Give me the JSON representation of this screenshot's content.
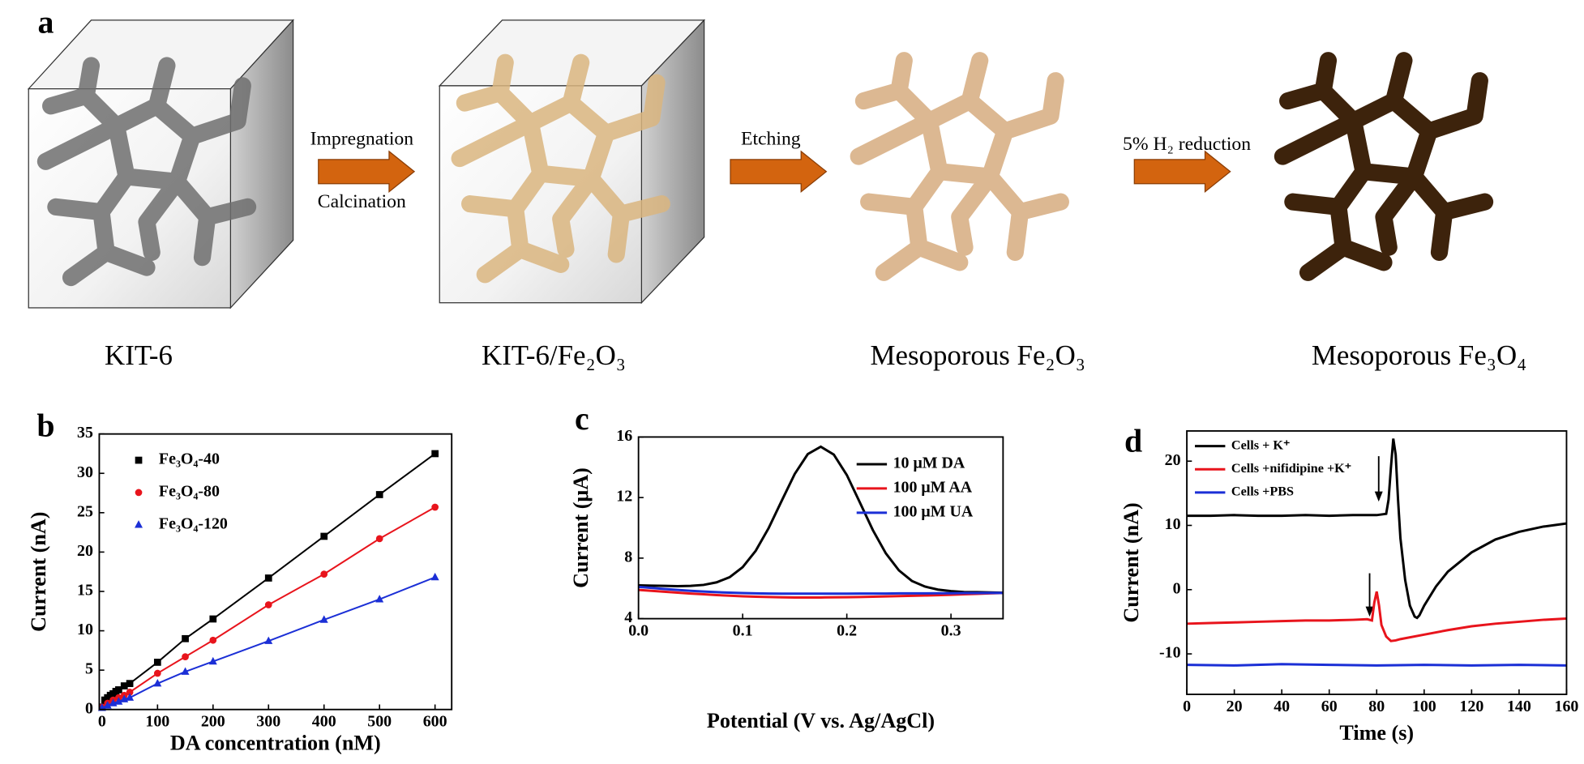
{
  "diagram": {
    "panel_label": "a",
    "steps": [
      {
        "label": "KIT-6"
      },
      {
        "label": "KIT-6/Fe₂O₃"
      },
      {
        "label": "Mesoporous Fe₂O₃"
      },
      {
        "label": "Mesoporous Fe₃O₄"
      }
    ],
    "arrows": [
      {
        "above": "Impregnation",
        "below": "Calcination"
      },
      {
        "above": "Etching"
      },
      {
        "above": "5% H₂ reduction"
      }
    ]
  },
  "chart_data": [
    {
      "type": "scatter",
      "panel_label": "b",
      "x_label": "DA concentration (nM)",
      "y_label": "Current (nA)",
      "xlim": [
        -5,
        630
      ],
      "ylim": [
        0,
        35
      ],
      "xticks": [
        0,
        100,
        200,
        300,
        400,
        500,
        600
      ],
      "yticks": [
        0,
        5,
        10,
        15,
        20,
        25,
        30,
        35
      ],
      "legend": "upper left",
      "series": [
        {
          "name": "Fe₃O₄-40",
          "color": "#000000",
          "marker": "square",
          "x": [
            0,
            5,
            10,
            15,
            20,
            25,
            30,
            40,
            50,
            100,
            150,
            200,
            300,
            400,
            500,
            600
          ],
          "values": [
            0.3,
            1.2,
            1.5,
            1.8,
            2.0,
            2.3,
            2.5,
            3.0,
            3.3,
            6.0,
            9.0,
            11.5,
            16.7,
            22.0,
            27.3,
            32.5
          ]
        },
        {
          "name": "Fe₃O₄-80",
          "color": "#e8141c",
          "marker": "circle",
          "x": [
            0,
            10,
            20,
            30,
            40,
            50,
            100,
            150,
            200,
            300,
            400,
            500,
            600
          ],
          "values": [
            0.3,
            0.8,
            1.2,
            1.5,
            1.8,
            2.2,
            4.6,
            6.7,
            8.8,
            13.3,
            17.2,
            21.7,
            25.7
          ]
        },
        {
          "name": "Fe₃O₄-120",
          "color": "#1b2fd6",
          "marker": "triangle",
          "x": [
            0,
            10,
            20,
            30,
            40,
            50,
            100,
            150,
            200,
            300,
            400,
            500,
            600
          ],
          "values": [
            0.2,
            0.5,
            0.8,
            1.0,
            1.3,
            1.5,
            3.3,
            4.8,
            6.1,
            8.7,
            11.4,
            14.0,
            16.8
          ]
        }
      ]
    },
    {
      "type": "line",
      "panel_label": "c",
      "x_label": "Potential (V vs. Ag/AgCl)",
      "y_label": "Current (μA)",
      "xlim": [
        0,
        0.35
      ],
      "ylim": [
        4,
        16
      ],
      "xticks": [
        {
          "value": 0,
          "label": "0.0"
        },
        0.1,
        0.2,
        0.3
      ],
      "yticks": [
        4,
        8,
        12,
        16
      ],
      "legend": "upper right",
      "series": [
        {
          "name": "10 μM DA",
          "color": "#000000",
          "x": [
            0,
            0.0125,
            0.025,
            0.0375,
            0.05,
            0.0625,
            0.075,
            0.0875,
            0.1,
            0.1125,
            0.125,
            0.1375,
            0.15,
            0.1625,
            0.175,
            0.1875,
            0.2,
            0.2125,
            0.225,
            0.2375,
            0.25,
            0.2625,
            0.275,
            0.2875,
            0.3,
            0.3125,
            0.325,
            0.3375,
            0.35
          ],
          "values": [
            6.2,
            6.18,
            6.17,
            6.15,
            6.17,
            6.23,
            6.4,
            6.74,
            7.4,
            8.48,
            9.99,
            11.79,
            13.56,
            14.87,
            15.36,
            14.84,
            13.49,
            11.68,
            9.85,
            8.31,
            7.19,
            6.49,
            6.12,
            5.92,
            5.82,
            5.76,
            5.75,
            5.73,
            5.71
          ]
        },
        {
          "name": "100 μM AA",
          "color": "#e8141c",
          "x": [
            0,
            0.0125,
            0.025,
            0.0375,
            0.05,
            0.0625,
            0.075,
            0.0875,
            0.1,
            0.1125,
            0.125,
            0.1375,
            0.15,
            0.1625,
            0.175,
            0.1875,
            0.2,
            0.2125,
            0.225,
            0.2375,
            0.25,
            0.2625,
            0.275,
            0.2875,
            0.3,
            0.3125,
            0.325,
            0.3375,
            0.35
          ],
          "values": [
            5.9,
            5.84,
            5.78,
            5.72,
            5.66,
            5.61,
            5.56,
            5.52,
            5.48,
            5.45,
            5.43,
            5.41,
            5.4,
            5.4,
            5.4,
            5.41,
            5.42,
            5.43,
            5.45,
            5.47,
            5.49,
            5.51,
            5.53,
            5.55,
            5.58,
            5.61,
            5.64,
            5.67,
            5.7
          ]
        },
        {
          "name": "100 μM UA",
          "color": "#1b2fd6",
          "x": [
            0,
            0.0125,
            0.025,
            0.0375,
            0.05,
            0.0625,
            0.075,
            0.0875,
            0.1,
            0.1125,
            0.125,
            0.1375,
            0.15,
            0.1625,
            0.175,
            0.1875,
            0.2,
            0.2125,
            0.225,
            0.2375,
            0.25,
            0.2625,
            0.275,
            0.2875,
            0.3,
            0.3125,
            0.325,
            0.3375,
            0.35
          ],
          "values": [
            6.1,
            6.03,
            5.96,
            5.9,
            5.84,
            5.79,
            5.75,
            5.72,
            5.69,
            5.67,
            5.66,
            5.65,
            5.65,
            5.65,
            5.65,
            5.65,
            5.65,
            5.66,
            5.66,
            5.66,
            5.67,
            5.67,
            5.67,
            5.68,
            5.68,
            5.69,
            5.69,
            5.7,
            5.7
          ]
        }
      ]
    },
    {
      "type": "line",
      "panel_label": "d",
      "x_label": "Time (s)",
      "y_label": "Current (nA)",
      "xlim": [
        0,
        160
      ],
      "ylim": [
        -16.3,
        24.7
      ],
      "xticks": [
        0,
        20,
        40,
        60,
        80,
        100,
        120,
        140,
        160
      ],
      "yticks": [
        -10,
        0,
        10,
        20
      ],
      "legend": "upper left",
      "series": [
        {
          "name": "Cells + K⁺",
          "color": "#000000",
          "x": [
            0,
            10,
            20,
            30,
            40,
            50,
            60,
            70,
            80,
            84,
            85,
            86,
            87,
            88,
            89,
            90,
            92,
            94,
            96,
            97,
            98,
            100,
            105,
            110,
            120,
            130,
            140,
            150,
            160
          ],
          "values": [
            11.5,
            11.5,
            11.6,
            11.5,
            11.5,
            11.6,
            11.5,
            11.6,
            11.6,
            11.8,
            14,
            19,
            23.5,
            21,
            14,
            8,
            1.5,
            -2.5,
            -4.2,
            -4.4,
            -4.0,
            -2.5,
            0.5,
            2.8,
            5.8,
            7.8,
            9.0,
            9.8,
            10.3
          ]
        },
        {
          "name": "Cells +nifidipine +K⁺",
          "color": "#e8141c",
          "x": [
            0,
            10,
            20,
            30,
            40,
            50,
            60,
            70,
            76,
            78,
            79,
            80,
            81,
            82,
            84,
            86,
            88,
            90,
            100,
            110,
            120,
            130,
            140,
            150,
            160
          ],
          "values": [
            -5.3,
            -5.2,
            -5.1,
            -5.0,
            -4.9,
            -4.8,
            -4.8,
            -4.7,
            -4.6,
            -4.8,
            -2,
            -0.3,
            -2.5,
            -5.5,
            -7.3,
            -8.0,
            -7.9,
            -7.7,
            -7.0,
            -6.3,
            -5.7,
            -5.3,
            -5.0,
            -4.7,
            -4.5
          ]
        },
        {
          "name": "Cells +PBS",
          "color": "#1b2fd6",
          "x": [
            0,
            20,
            40,
            60,
            80,
            100,
            120,
            140,
            160
          ],
          "values": [
            -11.7,
            -11.8,
            -11.6,
            -11.7,
            -11.8,
            -11.7,
            -11.8,
            -11.7,
            -11.8
          ]
        }
      ]
    }
  ]
}
